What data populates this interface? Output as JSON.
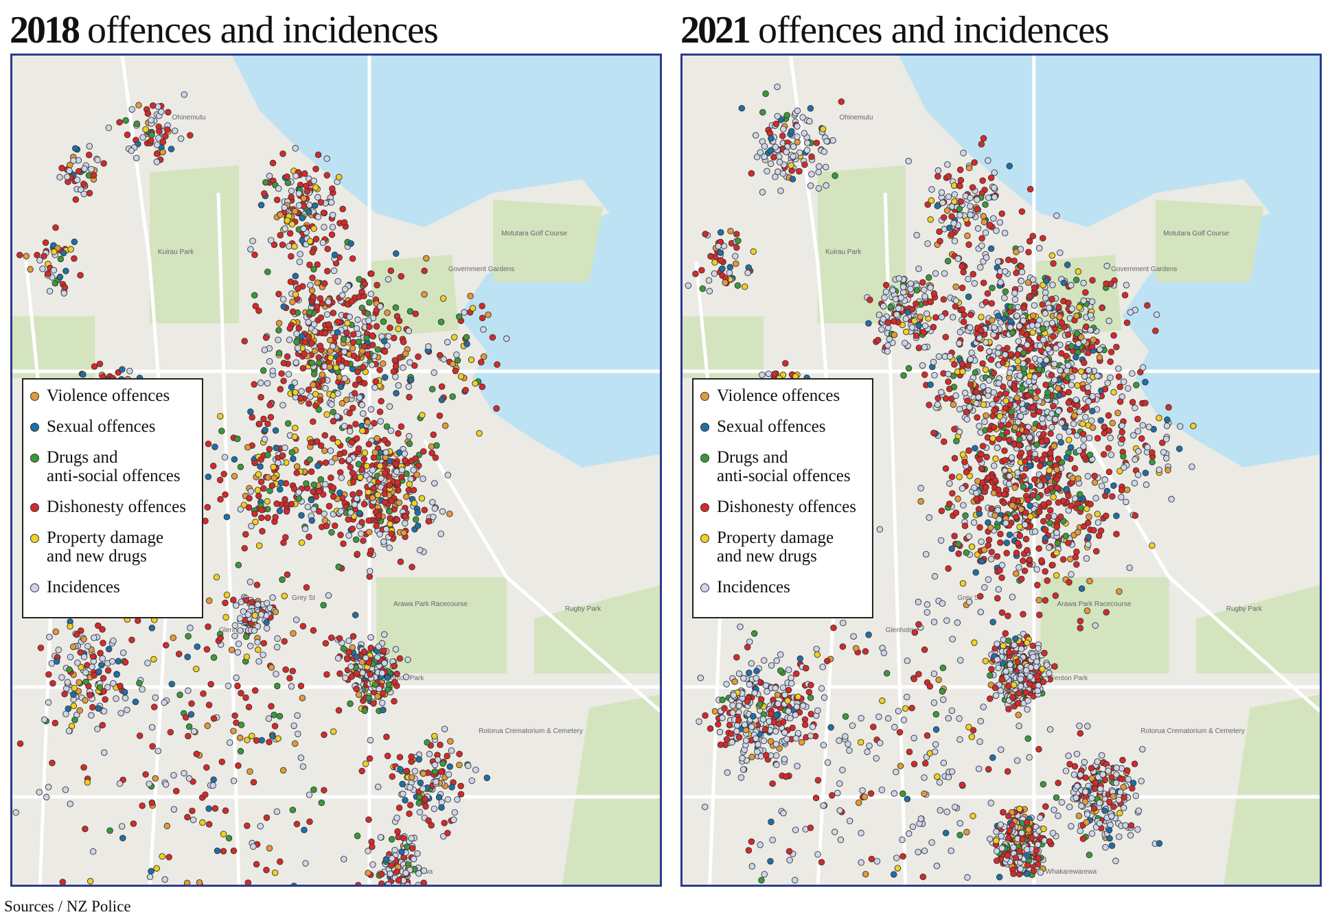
{
  "panels": [
    {
      "title_year": "2018",
      "title_rest": "offences and incidences",
      "legend": [
        {
          "lines": [
            "Violence offences"
          ],
          "color": "#e39a3a"
        },
        {
          "lines": [
            "Sexual offences"
          ],
          "color": "#1f6fa8"
        },
        {
          "lines": [
            "Drugs and",
            "anti-social offences"
          ],
          "color": "#3a9a3a"
        },
        {
          "lines": [
            "Dishonesty offences"
          ],
          "color": "#d62a2a"
        },
        {
          "lines": [
            "Property damage",
            "and new drugs"
          ],
          "color": "#f0d020"
        },
        {
          "lines": [
            "Incidences"
          ],
          "color": "#cdd6ea"
        }
      ],
      "map_labels": [
        "Ohinemutu",
        "Kuirau Park",
        "Government Gardens",
        "Motutara Golf Course",
        "Glenholme",
        "Fenton Park",
        "Arawa Park Racecourse",
        "Rugby Park",
        "Rotorua Crematorium & Cemetery",
        "Grey St",
        "Whakarewarewa"
      ]
    },
    {
      "title_year": "2021",
      "title_rest": "offences and incidences",
      "legend": [
        {
          "lines": [
            "Violence offences"
          ],
          "color": "#e39a3a"
        },
        {
          "lines": [
            "Sexual offences"
          ],
          "color": "#1f6fa8"
        },
        {
          "lines": [
            "Drugs and",
            "anti-social offences"
          ],
          "color": "#3a9a3a"
        },
        {
          "lines": [
            "Dishonesty offences"
          ],
          "color": "#d62a2a"
        },
        {
          "lines": [
            "Property damage",
            "and new drugs"
          ],
          "color": "#f0d020"
        },
        {
          "lines": [
            "Incidences"
          ],
          "color": "#cdd6ea"
        }
      ],
      "map_labels": [
        "Ohinemutu",
        "Kuirau Park",
        "Government Gardens",
        "Motutara Golf Course",
        "Glenholme",
        "Fenton Park",
        "Arawa Park Racecourse",
        "Rugby Park",
        "Rotorua Crematorium & Cemetery",
        "Grey St",
        "Whakarewarewa"
      ]
    }
  ],
  "source": "Sources / NZ Police"
}
